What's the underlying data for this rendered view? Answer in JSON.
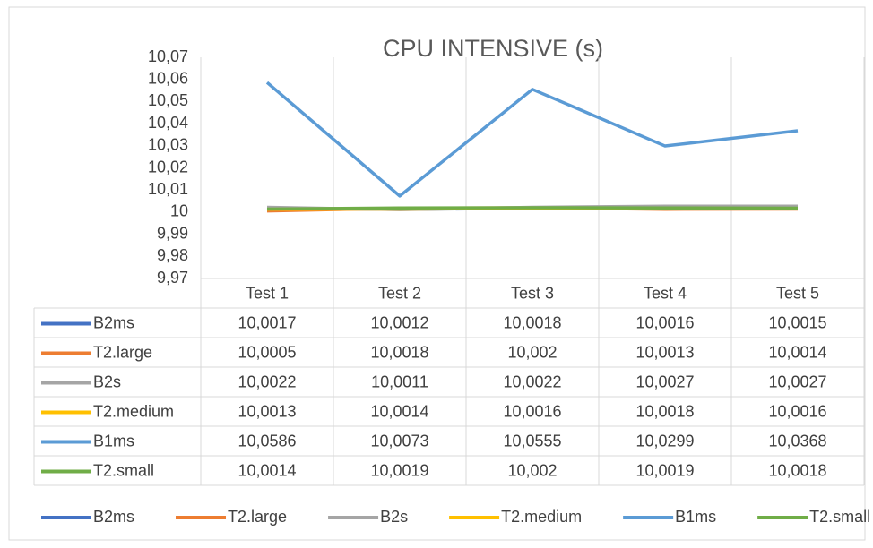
{
  "chart_data": {
    "type": "line",
    "title": "CPU INTENSIVE (s)",
    "categories": [
      "Test 1",
      "Test 2",
      "Test 3",
      "Test 4",
      "Test 5"
    ],
    "series": [
      {
        "name": "B2ms",
        "color": "#4472c4",
        "values": [
          10.0017,
          10.0012,
          10.0018,
          10.0016,
          10.0015
        ],
        "value_labels": [
          "10,0017",
          "10,0012",
          "10,0018",
          "10,0016",
          "10,0015"
        ]
      },
      {
        "name": "T2.large",
        "color": "#ed7d31",
        "values": [
          10.0005,
          10.0018,
          10.002,
          10.0013,
          10.0014
        ],
        "value_labels": [
          "10,0005",
          "10,0018",
          "10,002",
          "10,0013",
          "10,0014"
        ]
      },
      {
        "name": "B2s",
        "color": "#a5a5a5",
        "values": [
          10.0022,
          10.0011,
          10.0022,
          10.0027,
          10.0027
        ],
        "value_labels": [
          "10,0022",
          "10,0011",
          "10,0022",
          "10,0027",
          "10,0027"
        ]
      },
      {
        "name": "T2.medium",
        "color": "#ffc000",
        "values": [
          10.0013,
          10.0014,
          10.0016,
          10.0018,
          10.0016
        ],
        "value_labels": [
          "10,0013",
          "10,0014",
          "10,0016",
          "10,0018",
          "10,0016"
        ]
      },
      {
        "name": "B1ms",
        "color": "#5b9bd5",
        "values": [
          10.0586,
          10.0073,
          10.0555,
          10.0299,
          10.0368
        ],
        "value_labels": [
          "10,0586",
          "10,0073",
          "10,0555",
          "10,0299",
          "10,0368"
        ]
      },
      {
        "name": "T2.small",
        "color": "#70ad47",
        "values": [
          10.0014,
          10.0019,
          10.002,
          10.0019,
          10.0018
        ],
        "value_labels": [
          "10,0014",
          "10,0019",
          "10,002",
          "10,0019",
          "10,0018"
        ]
      }
    ],
    "ylim": [
      9.97,
      10.07
    ],
    "yticks": [
      {
        "value": 9.97,
        "label": "9,97"
      },
      {
        "value": 9.98,
        "label": "9,98"
      },
      {
        "value": 9.99,
        "label": "9,99"
      },
      10,
      {
        "value": 10.01,
        "label": "10,01"
      },
      {
        "value": 10.02,
        "label": "10,02"
      },
      {
        "value": 10.03,
        "label": "10,03"
      },
      {
        "value": 10.04,
        "label": "10,04"
      },
      {
        "value": 10.05,
        "label": "10,05"
      },
      {
        "value": 10.06,
        "label": "10,06"
      },
      {
        "value": 10.07,
        "label": "10,07"
      }
    ],
    "grid": true,
    "legend": "bottom"
  }
}
